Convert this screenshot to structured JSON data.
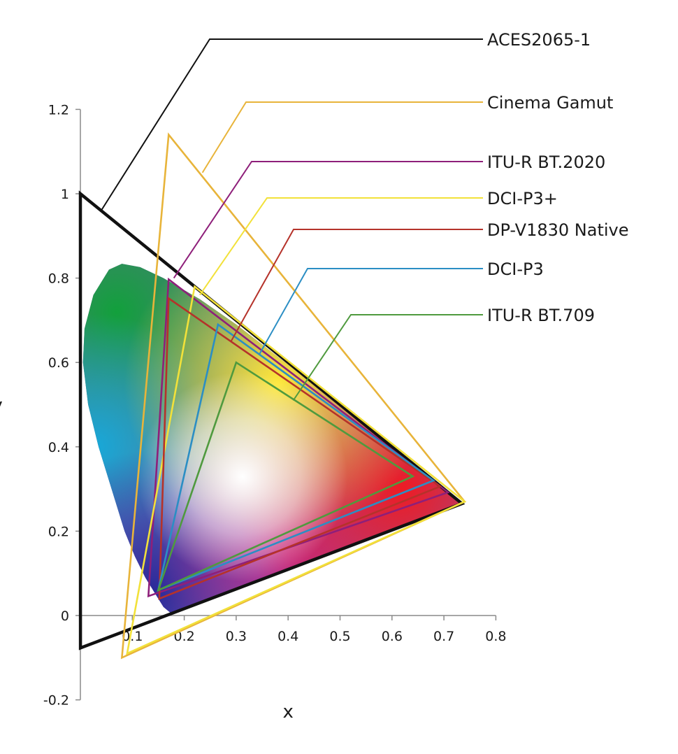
{
  "chart_data": {
    "type": "scatter",
    "title": "",
    "xlabel": "x",
    "ylabel": "y",
    "xlim": [
      0,
      0.8
    ],
    "ylim": [
      -0.2,
      1.2
    ],
    "x_ticks": [
      "0.1",
      "0.2",
      "0.3",
      "0.4",
      "0.5",
      "0.6",
      "0.7",
      "0.8"
    ],
    "y_ticks": [
      "-0.2",
      "0",
      "0.2",
      "0.4",
      "0.6",
      "0.8",
      "1",
      "1.2"
    ],
    "x_tick_values": [
      0.1,
      0.2,
      0.3,
      0.4,
      0.5,
      0.6,
      0.7,
      0.8
    ],
    "y_tick_values": [
      -0.2,
      0,
      0.2,
      0.4,
      0.6,
      0.8,
      1.0,
      1.2
    ],
    "grid": false,
    "legend_position": "right",
    "spectral_locus": [
      [
        0.175,
        0.005
      ],
      [
        0.17,
        0.01
      ],
      [
        0.16,
        0.02
      ],
      [
        0.145,
        0.05
      ],
      [
        0.125,
        0.09
      ],
      [
        0.105,
        0.14
      ],
      [
        0.085,
        0.2
      ],
      [
        0.06,
        0.3
      ],
      [
        0.035,
        0.4
      ],
      [
        0.015,
        0.5
      ],
      [
        0.005,
        0.6
      ],
      [
        0.008,
        0.68
      ],
      [
        0.025,
        0.76
      ],
      [
        0.055,
        0.82
      ],
      [
        0.08,
        0.834
      ],
      [
        0.115,
        0.826
      ],
      [
        0.16,
        0.8
      ],
      [
        0.23,
        0.75
      ],
      [
        0.3,
        0.69
      ],
      [
        0.4,
        0.595
      ],
      [
        0.5,
        0.5
      ],
      [
        0.6,
        0.4
      ],
      [
        0.7,
        0.3
      ],
      [
        0.735,
        0.265
      ]
    ],
    "series": [
      {
        "name": "ACES2065-1",
        "color": "#111111",
        "points": [
          [
            0.7347,
            0.2653
          ],
          [
            0.0,
            1.0
          ],
          [
            0.0001,
            -0.077
          ]
        ]
      },
      {
        "name": "Cinema Gamut",
        "color": "#e8b43a",
        "points": [
          [
            0.74,
            0.27
          ],
          [
            0.17,
            1.14
          ],
          [
            0.08,
            -0.1
          ]
        ]
      },
      {
        "name": "ITU-R BT.2020",
        "color": "#8e1f7a",
        "points": [
          [
            0.708,
            0.292
          ],
          [
            0.17,
            0.797
          ],
          [
            0.131,
            0.046
          ]
        ]
      },
      {
        "name": "DCI-P3+",
        "color": "#f2e13a",
        "points": [
          [
            0.74,
            0.27
          ],
          [
            0.22,
            0.78
          ],
          [
            0.09,
            -0.09
          ]
        ]
      },
      {
        "name": "DP-V1830 Native",
        "color": "#b5322a",
        "points": [
          [
            0.693,
            0.306
          ],
          [
            0.17,
            0.752
          ],
          [
            0.152,
            0.04
          ]
        ]
      },
      {
        "name": "DCI-P3",
        "color": "#2b8ec4",
        "points": [
          [
            0.68,
            0.32
          ],
          [
            0.265,
            0.69
          ],
          [
            0.15,
            0.06
          ]
        ]
      },
      {
        "name": "ITU-R BT.709",
        "color": "#4f9a3e",
        "points": [
          [
            0.64,
            0.33
          ],
          [
            0.3,
            0.6
          ],
          [
            0.15,
            0.06
          ]
        ]
      }
    ]
  },
  "legend_callout_anchors": {
    "ACES2065-1": [
      0.04,
      0.96
    ],
    "Cinema Gamut": [
      0.235,
      1.05
    ],
    "ITU-R BT.2020": [
      0.18,
      0.8
    ],
    "DCI-P3+": [
      0.23,
      0.76
    ],
    "DP-V1830 Native": [
      0.29,
      0.65
    ],
    "DCI-P3": [
      0.345,
      0.62
    ],
    "ITU-R BT.709": [
      0.41,
      0.51
    ]
  }
}
